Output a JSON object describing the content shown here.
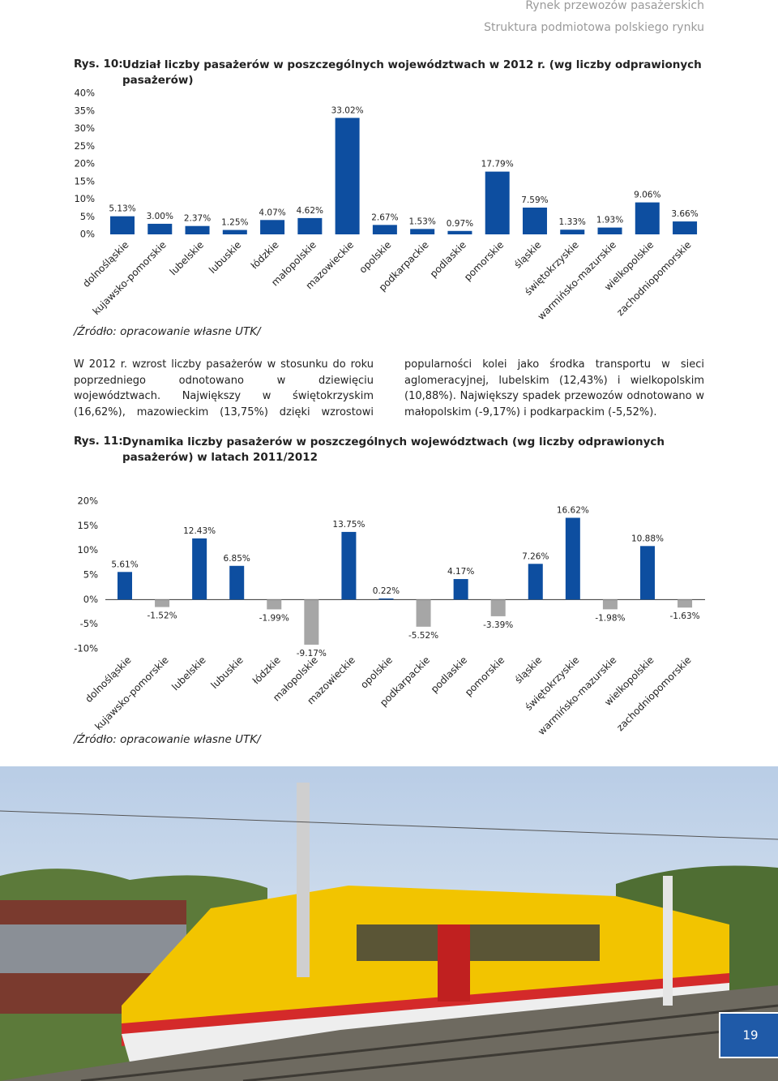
{
  "header": {
    "title": "Rynek przewozów pasażerskich",
    "subtitle": "Struktura podmiotowa polskiego rynku"
  },
  "chart_data": [
    {
      "type": "bar",
      "label": "Rys. 10:",
      "title": "Udział liczby pasażerów w poszczególnych województwach w 2012 r. (wg liczby odprawionych pasażerów)",
      "categories": [
        "dolnośląskie",
        "kujawsko-pomorskie",
        "lubelskie",
        "lubuskie",
        "łódzkie",
        "małopolskie",
        "mazowieckie",
        "opolskie",
        "podkarpackie",
        "podlaskie",
        "pomorskie",
        "śląskie",
        "świętokrzyskie",
        "warmińsko-mazurskie",
        "wielkopolskie",
        "zachodniopomorskie"
      ],
      "values": [
        5.13,
        3.0,
        2.37,
        1.25,
        4.07,
        4.62,
        33.02,
        2.67,
        1.53,
        0.97,
        17.79,
        7.59,
        1.33,
        1.93,
        9.06,
        3.66
      ],
      "value_labels": [
        "5.13%",
        "3.00%",
        "2.37%",
        "1.25%",
        "4.07%",
        "4.62%",
        "33.02%",
        "2.67%",
        "1.53%",
        "0.97%",
        "17.79%",
        "7.59%",
        "1.33%",
        "1.93%",
        "9.06%",
        "3.66%"
      ],
      "color": "#0d4ea0",
      "ylim": [
        0,
        40
      ],
      "yticks": [
        {
          "value": 0,
          "label": "0%"
        },
        {
          "value": 5,
          "label": "5%"
        },
        {
          "value": 10,
          "label": "10%"
        },
        {
          "value": 15,
          "label": "15%"
        },
        {
          "value": 20,
          "label": "20%"
        },
        {
          "value": 25,
          "label": "25%"
        },
        {
          "value": 30,
          "label": "30%"
        },
        {
          "value": 35,
          "label": "35%"
        },
        {
          "value": 40,
          "label": "40%"
        }
      ],
      "source": "/Źródło: opracowanie własne UTK/"
    },
    {
      "type": "bar",
      "label": "Rys. 11:",
      "title": "Dynamika liczby pasażerów w poszczególnych województwach (wg liczby odprawionych pasażerów) w latach 2011/2012",
      "categories": [
        "dolnośląskie",
        "kujawsko-pomorskie",
        "lubelskie",
        "lubuskie",
        "łódzkie",
        "małopolskie",
        "mazowieckie",
        "opolskie",
        "podkarpackie",
        "podlaskie",
        "pomorskie",
        "śląskie",
        "świętokrzyskie",
        "warmińsko-mazurskie",
        "wielkopolskie",
        "zachodniopomorskie"
      ],
      "values": [
        5.61,
        -1.52,
        12.43,
        6.85,
        -1.99,
        -9.17,
        13.75,
        0.22,
        -5.52,
        4.17,
        -3.39,
        7.26,
        16.62,
        -1.98,
        10.88,
        -1.63
      ],
      "value_labels": [
        "5.61%",
        "-1.52%",
        "12.43%",
        "6.85%",
        "-1.99%",
        "-9.17%",
        "13.75%",
        "0.22%",
        "-5.52%",
        "4.17%",
        "-3.39%",
        "7.26%",
        "16.62%",
        "-1.98%",
        "10.88%",
        "-1.63%"
      ],
      "color": "#0d4ea0",
      "negative_color": "#a6a6a6",
      "ylim": [
        -10,
        20
      ],
      "yticks": [
        {
          "value": -10,
          "label": "-10%"
        },
        {
          "value": -5,
          "label": "-5%"
        },
        {
          "value": 0,
          "label": "0%"
        },
        {
          "value": 5,
          "label": "5%"
        },
        {
          "value": 10,
          "label": "10%"
        },
        {
          "value": 15,
          "label": "15%"
        },
        {
          "value": 20,
          "label": "20%"
        }
      ],
      "source": "/Źródło: opracowanie własne UTK/"
    }
  ],
  "body": "W 2012 r. wzrost liczby pasażerów w stosunku do roku poprzedniego odnotowano w dziewięciu województwach. Największy w świętokrzyskim (16,62%), mazowieckim (13,75%) dzięki wzrostowi popularności kolei jako środka transportu w sieci aglomeracyjnej, lubelskim (12,43%) i wielkopolskim (10,88%). Największy spadek przewozów odnotowano w małopolskim (-9,17%) i podkarpackim (-5,52%).",
  "page_number": "19"
}
